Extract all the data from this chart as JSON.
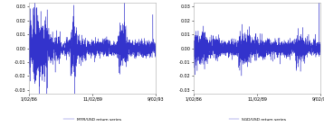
{
  "legend_left": "MYR/USD return series",
  "legend_right": "SGD/USD return series",
  "ylim": [
    -0.033,
    0.033
  ],
  "yticks": [
    -0.03,
    -0.02,
    -0.01,
    0.0,
    0.01,
    0.02,
    0.03
  ],
  "xtick_labels": [
    "1/02/86",
    "11/02/89",
    "9/02/93"
  ],
  "line_color": "#3333cc",
  "background_color": "#ffffff",
  "n_points": 2000,
  "figsize": [
    3.58,
    1.41
  ],
  "dpi": 100
}
